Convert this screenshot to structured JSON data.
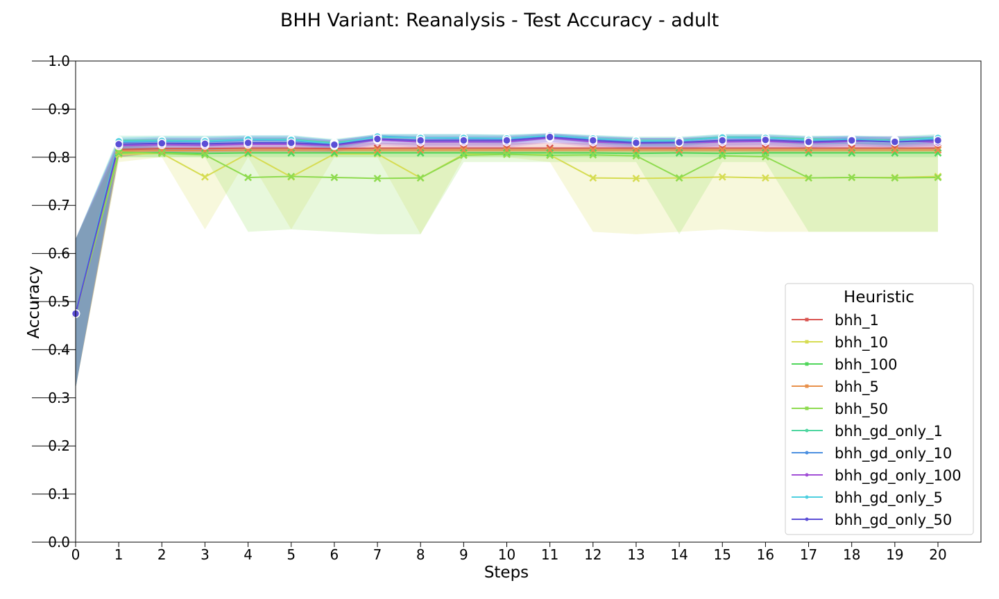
{
  "chart_data": {
    "type": "line",
    "title": "BHH Variant: Reanalysis - Test Accuracy - adult",
    "xlabel": "Steps",
    "ylabel": "Accuracy",
    "xlim": [
      0,
      20
    ],
    "ylim": [
      0.0,
      1.0
    ],
    "x_ticks": [
      "0",
      "1",
      "2",
      "3",
      "4",
      "5",
      "6",
      "7",
      "8",
      "9",
      "10",
      "11",
      "12",
      "13",
      "14",
      "15",
      "16",
      "17",
      "18",
      "19",
      "20"
    ],
    "y_ticks": [
      "0.0",
      "0.1",
      "0.2",
      "0.3",
      "0.4",
      "0.5",
      "0.6",
      "0.7",
      "0.8",
      "0.9",
      "1.0"
    ],
    "grid": false,
    "legend": {
      "title": "Heuristic",
      "position": "lower-right"
    },
    "x": [
      0,
      1,
      2,
      3,
      4,
      5,
      6,
      7,
      8,
      9,
      10,
      11,
      12,
      13,
      14,
      15,
      16,
      17,
      18,
      19,
      20
    ],
    "series": [
      {
        "name": "bhh_1",
        "color": "#d9534f",
        "marker": "x",
        "values": [
          0.475,
          0.816,
          0.818,
          0.818,
          0.819,
          0.819,
          0.818,
          0.819,
          0.819,
          0.819,
          0.819,
          0.819,
          0.819,
          0.819,
          0.819,
          0.819,
          0.819,
          0.819,
          0.819,
          0.819,
          0.819
        ],
        "band": [
          [
            0.32,
            0.63
          ],
          [
            0.8,
            0.83
          ],
          [
            0.81,
            0.83
          ],
          [
            0.81,
            0.83
          ],
          [
            0.81,
            0.83
          ],
          [
            0.81,
            0.83
          ],
          [
            0.81,
            0.83
          ],
          [
            0.81,
            0.83
          ],
          [
            0.81,
            0.83
          ],
          [
            0.81,
            0.83
          ],
          [
            0.81,
            0.83
          ],
          [
            0.81,
            0.83
          ],
          [
            0.81,
            0.83
          ],
          [
            0.81,
            0.83
          ],
          [
            0.81,
            0.83
          ],
          [
            0.81,
            0.83
          ],
          [
            0.81,
            0.83
          ],
          [
            0.81,
            0.83
          ],
          [
            0.81,
            0.83
          ],
          [
            0.81,
            0.83
          ],
          [
            0.81,
            0.83
          ]
        ]
      },
      {
        "name": "bhh_10",
        "color": "#d6dc52",
        "marker": "x",
        "values": [
          0.475,
          0.806,
          0.808,
          0.759,
          0.808,
          0.759,
          0.807,
          0.807,
          0.757,
          0.806,
          0.806,
          0.805,
          0.757,
          0.756,
          0.757,
          0.759,
          0.757,
          0.757,
          0.758,
          0.758,
          0.76
        ],
        "band": [
          [
            0.32,
            0.63
          ],
          [
            0.79,
            0.82
          ],
          [
            0.8,
            0.82
          ],
          [
            0.65,
            0.82
          ],
          [
            0.8,
            0.82
          ],
          [
            0.65,
            0.82
          ],
          [
            0.8,
            0.82
          ],
          [
            0.8,
            0.82
          ],
          [
            0.64,
            0.82
          ],
          [
            0.8,
            0.82
          ],
          [
            0.8,
            0.82
          ],
          [
            0.79,
            0.82
          ],
          [
            0.645,
            0.82
          ],
          [
            0.64,
            0.82
          ],
          [
            0.645,
            0.82
          ],
          [
            0.65,
            0.82
          ],
          [
            0.645,
            0.82
          ],
          [
            0.645,
            0.82
          ],
          [
            0.645,
            0.82
          ],
          [
            0.645,
            0.82
          ],
          [
            0.645,
            0.82
          ]
        ]
      },
      {
        "name": "bhh_100",
        "color": "#4fd65a",
        "marker": "x",
        "values": [
          0.475,
          0.809,
          0.81,
          0.808,
          0.809,
          0.809,
          0.809,
          0.809,
          0.809,
          0.809,
          0.809,
          0.809,
          0.809,
          0.808,
          0.809,
          0.808,
          0.809,
          0.809,
          0.809,
          0.809,
          0.809
        ],
        "band": [
          [
            0.32,
            0.63
          ],
          [
            0.8,
            0.82
          ],
          [
            0.8,
            0.82
          ],
          [
            0.8,
            0.82
          ],
          [
            0.8,
            0.82
          ],
          [
            0.8,
            0.82
          ],
          [
            0.8,
            0.82
          ],
          [
            0.8,
            0.82
          ],
          [
            0.8,
            0.82
          ],
          [
            0.8,
            0.82
          ],
          [
            0.8,
            0.82
          ],
          [
            0.8,
            0.82
          ],
          [
            0.8,
            0.82
          ],
          [
            0.8,
            0.82
          ],
          [
            0.8,
            0.82
          ],
          [
            0.8,
            0.82
          ],
          [
            0.8,
            0.82
          ],
          [
            0.8,
            0.82
          ],
          [
            0.8,
            0.82
          ],
          [
            0.8,
            0.82
          ],
          [
            0.8,
            0.82
          ]
        ]
      },
      {
        "name": "bhh_5",
        "color": "#e8904a",
        "marker": "x",
        "values": [
          0.475,
          0.813,
          0.814,
          0.814,
          0.815,
          0.815,
          0.815,
          0.815,
          0.815,
          0.815,
          0.815,
          0.815,
          0.815,
          0.815,
          0.815,
          0.815,
          0.815,
          0.815,
          0.815,
          0.815,
          0.815
        ],
        "band": [
          [
            0.32,
            0.63
          ],
          [
            0.8,
            0.83
          ],
          [
            0.81,
            0.82
          ],
          [
            0.81,
            0.82
          ],
          [
            0.81,
            0.82
          ],
          [
            0.81,
            0.82
          ],
          [
            0.81,
            0.82
          ],
          [
            0.81,
            0.82
          ],
          [
            0.81,
            0.82
          ],
          [
            0.81,
            0.82
          ],
          [
            0.81,
            0.82
          ],
          [
            0.81,
            0.82
          ],
          [
            0.81,
            0.82
          ],
          [
            0.81,
            0.82
          ],
          [
            0.81,
            0.82
          ],
          [
            0.81,
            0.82
          ],
          [
            0.81,
            0.82
          ],
          [
            0.81,
            0.82
          ],
          [
            0.81,
            0.82
          ],
          [
            0.81,
            0.82
          ],
          [
            0.81,
            0.82
          ]
        ]
      },
      {
        "name": "bhh_50",
        "color": "#8edb4f",
        "marker": "x",
        "values": [
          0.475,
          0.811,
          0.808,
          0.805,
          0.758,
          0.76,
          0.758,
          0.756,
          0.757,
          0.804,
          0.806,
          0.804,
          0.805,
          0.803,
          0.757,
          0.803,
          0.801,
          0.757,
          0.758,
          0.757,
          0.758
        ],
        "band": [
          [
            0.32,
            0.63
          ],
          [
            0.8,
            0.82
          ],
          [
            0.8,
            0.82
          ],
          [
            0.8,
            0.82
          ],
          [
            0.645,
            0.82
          ],
          [
            0.65,
            0.82
          ],
          [
            0.645,
            0.82
          ],
          [
            0.64,
            0.82
          ],
          [
            0.64,
            0.82
          ],
          [
            0.79,
            0.82
          ],
          [
            0.79,
            0.82
          ],
          [
            0.79,
            0.82
          ],
          [
            0.79,
            0.82
          ],
          [
            0.79,
            0.82
          ],
          [
            0.64,
            0.82
          ],
          [
            0.79,
            0.82
          ],
          [
            0.79,
            0.82
          ],
          [
            0.645,
            0.82
          ],
          [
            0.645,
            0.82
          ],
          [
            0.645,
            0.82
          ],
          [
            0.645,
            0.82
          ]
        ]
      },
      {
        "name": "bhh_gd_only_1",
        "color": "#4ed6a0",
        "marker": "o",
        "values": [
          0.475,
          0.835,
          0.835,
          0.834,
          0.837,
          0.837,
          0.83,
          0.842,
          0.84,
          0.84,
          0.839,
          0.845,
          0.839,
          0.835,
          0.835,
          0.842,
          0.841,
          0.838,
          0.837,
          0.836,
          0.841
        ],
        "band": [
          [
            0.32,
            0.63
          ],
          [
            0.82,
            0.845
          ],
          [
            0.825,
            0.845
          ],
          [
            0.825,
            0.845
          ],
          [
            0.83,
            0.845
          ],
          [
            0.83,
            0.845
          ],
          [
            0.82,
            0.838
          ],
          [
            0.835,
            0.848
          ],
          [
            0.83,
            0.848
          ],
          [
            0.83,
            0.848
          ],
          [
            0.83,
            0.847
          ],
          [
            0.838,
            0.85
          ],
          [
            0.83,
            0.846
          ],
          [
            0.825,
            0.843
          ],
          [
            0.825,
            0.843
          ],
          [
            0.832,
            0.848
          ],
          [
            0.832,
            0.848
          ],
          [
            0.828,
            0.845
          ],
          [
            0.828,
            0.845
          ],
          [
            0.826,
            0.844
          ],
          [
            0.832,
            0.848
          ]
        ]
      },
      {
        "name": "bhh_gd_only_10",
        "color": "#4a8fe0",
        "marker": "o",
        "values": [
          0.475,
          0.831,
          0.833,
          0.832,
          0.836,
          0.835,
          0.826,
          0.844,
          0.84,
          0.839,
          0.838,
          0.845,
          0.838,
          0.832,
          0.834,
          0.841,
          0.84,
          0.835,
          0.838,
          0.833,
          0.838
        ],
        "band": [
          [
            0.32,
            0.63
          ],
          [
            0.815,
            0.84
          ],
          [
            0.822,
            0.842
          ],
          [
            0.822,
            0.842
          ],
          [
            0.826,
            0.845
          ],
          [
            0.826,
            0.845
          ],
          [
            0.815,
            0.835
          ],
          [
            0.835,
            0.848
          ],
          [
            0.83,
            0.848
          ],
          [
            0.83,
            0.848
          ],
          [
            0.828,
            0.846
          ],
          [
            0.838,
            0.85
          ],
          [
            0.828,
            0.845
          ],
          [
            0.822,
            0.84
          ],
          [
            0.822,
            0.84
          ],
          [
            0.83,
            0.847
          ],
          [
            0.83,
            0.847
          ],
          [
            0.825,
            0.843
          ],
          [
            0.828,
            0.845
          ],
          [
            0.823,
            0.84
          ],
          [
            0.828,
            0.845
          ]
        ]
      },
      {
        "name": "bhh_gd_only_100",
        "color": "#a14ed6",
        "marker": "o",
        "values": [
          0.475,
          0.824,
          0.826,
          0.825,
          0.827,
          0.827,
          0.824,
          0.836,
          0.832,
          0.832,
          0.832,
          0.84,
          0.832,
          0.829,
          0.83,
          0.832,
          0.833,
          0.83,
          0.833,
          0.835,
          0.831
        ],
        "band": [
          [
            0.32,
            0.63
          ],
          [
            0.8,
            0.835
          ],
          [
            0.81,
            0.838
          ],
          [
            0.81,
            0.838
          ],
          [
            0.812,
            0.84
          ],
          [
            0.812,
            0.84
          ],
          [
            0.81,
            0.835
          ],
          [
            0.825,
            0.845
          ],
          [
            0.82,
            0.842
          ],
          [
            0.82,
            0.842
          ],
          [
            0.82,
            0.842
          ],
          [
            0.83,
            0.848
          ],
          [
            0.82,
            0.842
          ],
          [
            0.815,
            0.84
          ],
          [
            0.815,
            0.84
          ],
          [
            0.82,
            0.842
          ],
          [
            0.82,
            0.842
          ],
          [
            0.818,
            0.84
          ],
          [
            0.82,
            0.842
          ],
          [
            0.822,
            0.844
          ],
          [
            0.82,
            0.842
          ]
        ]
      },
      {
        "name": "bhh_gd_only_5",
        "color": "#4ecfe0",
        "marker": "o",
        "values": [
          0.475,
          0.833,
          0.834,
          0.833,
          0.837,
          0.836,
          0.828,
          0.843,
          0.84,
          0.84,
          0.839,
          0.845,
          0.839,
          0.834,
          0.834,
          0.841,
          0.84,
          0.836,
          0.837,
          0.834,
          0.84
        ],
        "band": [
          [
            0.32,
            0.63
          ],
          [
            0.82,
            0.842
          ],
          [
            0.824,
            0.844
          ],
          [
            0.824,
            0.844
          ],
          [
            0.828,
            0.846
          ],
          [
            0.828,
            0.846
          ],
          [
            0.818,
            0.837
          ],
          [
            0.835,
            0.848
          ],
          [
            0.83,
            0.848
          ],
          [
            0.83,
            0.848
          ],
          [
            0.83,
            0.847
          ],
          [
            0.838,
            0.85
          ],
          [
            0.83,
            0.846
          ],
          [
            0.824,
            0.842
          ],
          [
            0.824,
            0.842
          ],
          [
            0.832,
            0.848
          ],
          [
            0.832,
            0.848
          ],
          [
            0.826,
            0.844
          ],
          [
            0.828,
            0.845
          ],
          [
            0.825,
            0.843
          ],
          [
            0.83,
            0.847
          ]
        ]
      },
      {
        "name": "bhh_gd_only_50",
        "color": "#5b4ed6",
        "marker": "o",
        "values": [
          0.475,
          0.827,
          0.829,
          0.828,
          0.83,
          0.83,
          0.826,
          0.838,
          0.835,
          0.835,
          0.835,
          0.842,
          0.835,
          0.83,
          0.831,
          0.835,
          0.836,
          0.832,
          0.835,
          0.832,
          0.835
        ],
        "band": [
          [
            0.32,
            0.63
          ],
          [
            0.81,
            0.837
          ],
          [
            0.815,
            0.84
          ],
          [
            0.815,
            0.84
          ],
          [
            0.818,
            0.842
          ],
          [
            0.818,
            0.842
          ],
          [
            0.812,
            0.836
          ],
          [
            0.828,
            0.846
          ],
          [
            0.824,
            0.844
          ],
          [
            0.824,
            0.844
          ],
          [
            0.824,
            0.844
          ],
          [
            0.832,
            0.849
          ],
          [
            0.824,
            0.843
          ],
          [
            0.818,
            0.84
          ],
          [
            0.818,
            0.84
          ],
          [
            0.824,
            0.844
          ],
          [
            0.825,
            0.845
          ],
          [
            0.82,
            0.842
          ],
          [
            0.824,
            0.843
          ],
          [
            0.82,
            0.842
          ],
          [
            0.824,
            0.844
          ]
        ]
      }
    ]
  }
}
